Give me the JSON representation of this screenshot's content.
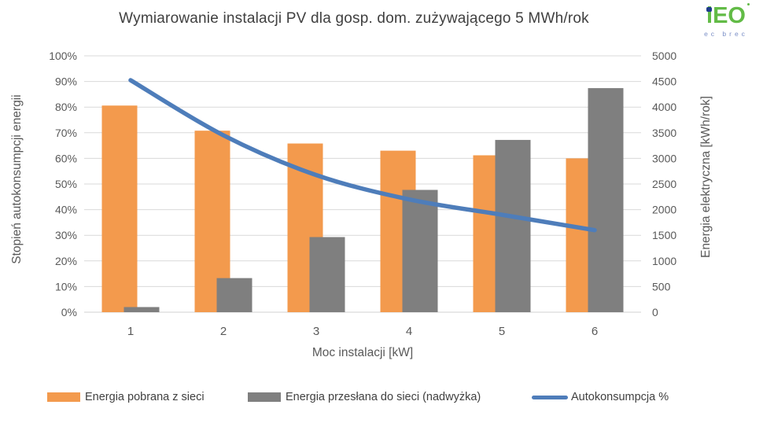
{
  "header": {
    "logo": {
      "letter_i": "i",
      "letters_eo": "EO",
      "subtext": "ec brec"
    }
  },
  "chart_data": {
    "type": "bar+line",
    "title": "Wymiarowanie instalacji PV dla gosp. dom. zużywającego 5 MWh/rok",
    "categories": [
      "1",
      "2",
      "3",
      "4",
      "5",
      "6"
    ],
    "xlabel": "Moc instalacji [kW]",
    "left_axis": {
      "label": "Stopień autokonsumpcji energii",
      "min": 0,
      "max": 100,
      "step": 10,
      "suffix": "%"
    },
    "right_axis": {
      "label": "Energia elektryczna [kWh/rok]",
      "min": 0,
      "max": 5000,
      "step": 500,
      "suffix": ""
    },
    "grid": "horizontal",
    "legend_position": "bottom",
    "series": [
      {
        "name": "Energia pobrana z sieci",
        "type": "bar",
        "axis": "right",
        "color": "#F39A4D",
        "values": [
          4030,
          3540,
          3290,
          3150,
          3060,
          3000
        ]
      },
      {
        "name": "Energia przesłana do sieci (nadwyżka)",
        "type": "bar",
        "axis": "right",
        "color": "#7F7F7F",
        "values": [
          100,
          665,
          1465,
          2385,
          3360,
          4370
        ]
      },
      {
        "name": "Autokonsumpcja %",
        "type": "line",
        "axis": "left",
        "color": "#4E7DBA",
        "values": [
          90.5,
          69,
          53.5,
          44,
          38,
          32
        ]
      }
    ],
    "colors": {
      "gridline": "#D9D9D9",
      "axis_line": "#D0D0D0",
      "tick_text": "#595959",
      "title_text": "#3F3F3F"
    }
  }
}
